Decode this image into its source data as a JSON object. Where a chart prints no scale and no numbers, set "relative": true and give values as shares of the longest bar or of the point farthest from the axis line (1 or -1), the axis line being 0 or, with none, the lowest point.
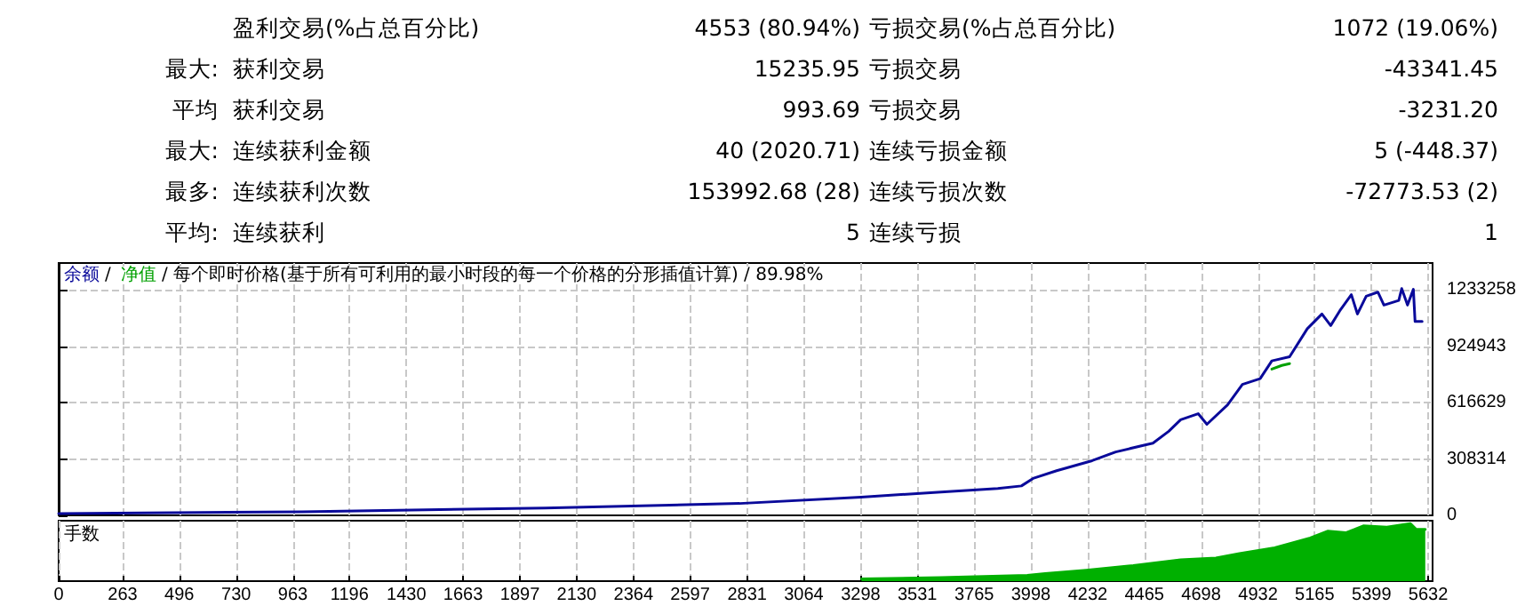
{
  "chart_data": [
    {
      "type": "other",
      "annotations": [
        "盈利交易(%占总百分比)",
        "4553 (80.94%)",
        "亏损交易(%占总百分比)",
        "1072 (19.06%)",
        "最大:",
        "获利交易",
        "15235.95",
        "亏损交易",
        "-43341.45",
        "平均",
        "获利交易",
        "993.69",
        "亏损交易",
        "-3231.20",
        "最大:",
        "连续获利金额",
        "40 (2020.71)",
        "连续亏损金额",
        "5 (-448.37)",
        "最多:",
        "连续获利次数",
        "153992.68 (28)",
        "连续亏损次数",
        "-72773.53 (2)",
        "平均:",
        "连续获利",
        "5",
        "连续亏损",
        "1"
      ]
    },
    {
      "type": "line",
      "title": "/ 每个即时价格(基于所有可利用的最小时段的每一个价格的分形插值计算) / 89.98%",
      "annotations": [
        "/"
      ],
      "legend": "top left",
      "grid": true,
      "tick_labels": "y",
      "marker": "none",
      "line_style": "solid",
      "xlim": [
        0,
        5650
      ],
      "xticks": [
        0,
        263,
        496,
        730,
        963,
        1196,
        1430,
        1663,
        1897,
        2130,
        2364,
        2597,
        2831,
        3064,
        3298,
        3531,
        3765,
        3998,
        4232,
        4465,
        4698,
        4932,
        5165,
        5399,
        5632
      ],
      "ylim": [
        0,
        1380000
      ],
      "yticks": [
        0,
        308314,
        616629,
        924943,
        1233258
      ],
      "series": [
        {
          "name": "余额",
          "color": "#0a0a9a",
          "x": [
            0,
            1000,
            2000,
            2800,
            3300,
            3600,
            3862,
            3959,
            4007,
            4104,
            4250,
            4347,
            4468,
            4500,
            4565,
            4614,
            4686,
            4722,
            4807,
            4868,
            4941,
            4989,
            5062,
            5135,
            5195,
            5231,
            5268,
            5316,
            5341,
            5377,
            5425,
            5450,
            5511,
            5523,
            5547,
            5571,
            5578,
            5607
          ],
          "values": [
            10000,
            20000,
            40000,
            65000,
            100000,
            125000,
            147000,
            161000,
            202000,
            244000,
            299000,
            347000,
            385000,
            395000,
            460000,
            523000,
            556000,
            498000,
            604000,
            716000,
            748000,
            845000,
            867000,
            1021000,
            1101000,
            1038000,
            1118000,
            1207000,
            1101000,
            1198000,
            1221000,
            1150000,
            1175000,
            1240000,
            1150000,
            1236000,
            1060000,
            1060000
          ]
        },
        {
          "name": "净值",
          "color": "#00a000",
          "x": [
            4989,
            5030,
            5062
          ],
          "values": [
            800000,
            820000,
            830000
          ]
        }
      ]
    },
    {
      "type": "area",
      "ylabel": "手数",
      "relative": true,
      "grid": "x",
      "tick_labels": "x",
      "marker": "none",
      "xlim": [
        0,
        5650
      ],
      "xticks": [
        0,
        263,
        496,
        730,
        963,
        1196,
        1430,
        1663,
        1897,
        2130,
        2364,
        2597,
        2831,
        3064,
        3298,
        3531,
        3765,
        3998,
        4232,
        4465,
        4698,
        4932,
        5165,
        5399,
        5632
      ],
      "series": [
        {
          "color": "#00b000",
          "x": [
            3302,
            3629,
            3700,
            3983,
            4057,
            4226,
            4419,
            4614,
            4759,
            4856,
            5001,
            5147,
            5220,
            5293,
            5365,
            5462,
            5559,
            5583,
            5620
          ],
          "values": [
            0.04,
            0.06,
            0.07,
            0.1,
            0.13,
            0.19,
            0.27,
            0.37,
            0.4,
            0.48,
            0.58,
            0.75,
            0.87,
            0.84,
            0.96,
            0.94,
            1,
            0.9,
            0.9
          ]
        }
      ]
    }
  ]
}
